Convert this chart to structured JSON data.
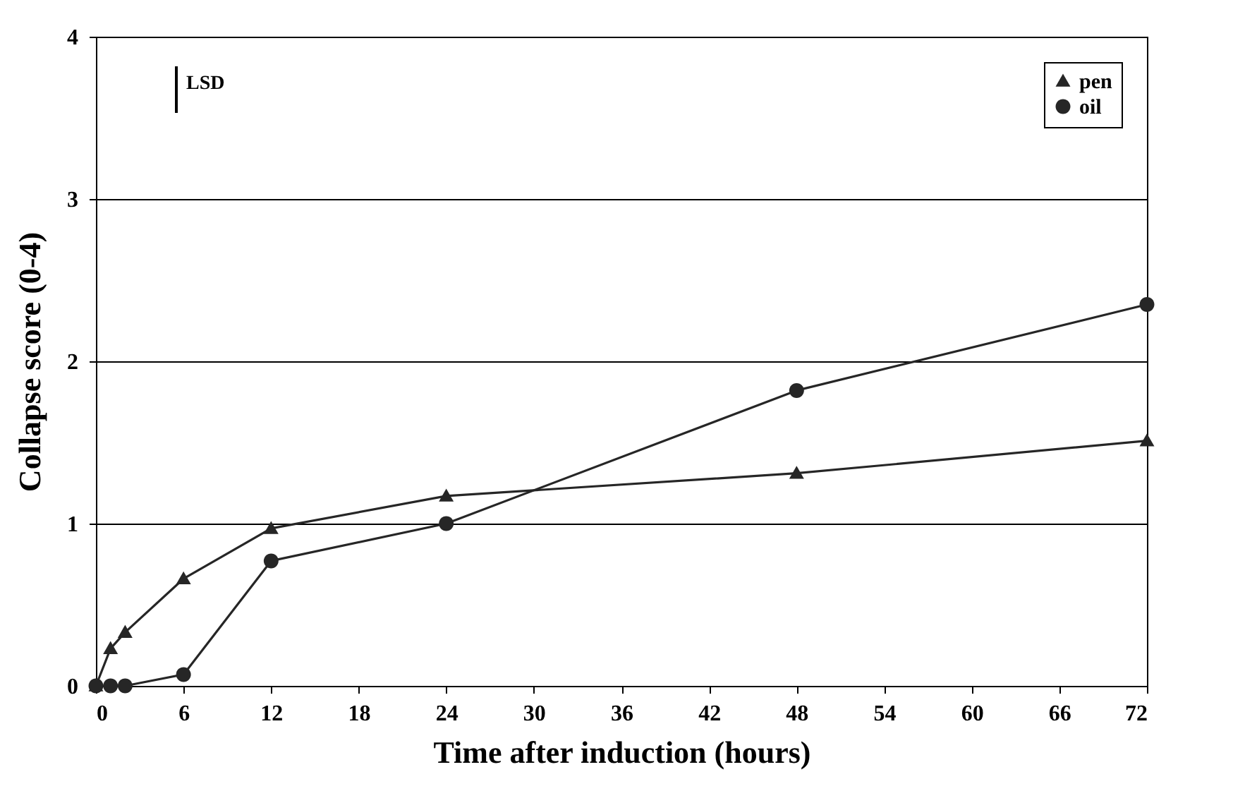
{
  "chart_data": {
    "type": "line",
    "xlabel": "Time after induction (hours)",
    "ylabel": "Collapse score (0-4)",
    "x": [
      0,
      1,
      2,
      6,
      12,
      24,
      48,
      72
    ],
    "series": [
      {
        "name": "pen",
        "color": "#262626",
        "marker": "triangle",
        "values": [
          0,
          0.23,
          0.33,
          0.66,
          0.97,
          1.17,
          1.31,
          1.51
        ]
      },
      {
        "name": "oil",
        "color": "#262626",
        "marker": "circle",
        "values": [
          0,
          0,
          0,
          0.07,
          0.77,
          1.0,
          1.82,
          2.35
        ]
      }
    ],
    "xlim": [
      0,
      72
    ],
    "xticks": [
      0,
      6,
      12,
      18,
      24,
      30,
      36,
      42,
      48,
      54,
      60,
      66,
      72
    ],
    "ylim": [
      0,
      4
    ],
    "yticks": [
      {
        "value": 0,
        "label": "0"
      },
      {
        "value": 1,
        "label": "1"
      },
      {
        "value": 2,
        "label": "2"
      },
      {
        "value": 3,
        "label": "3"
      },
      {
        "value": 4,
        "label": "4"
      }
    ],
    "grid": "y",
    "legend": "top right",
    "annotations": [
      "LSD"
    ]
  }
}
